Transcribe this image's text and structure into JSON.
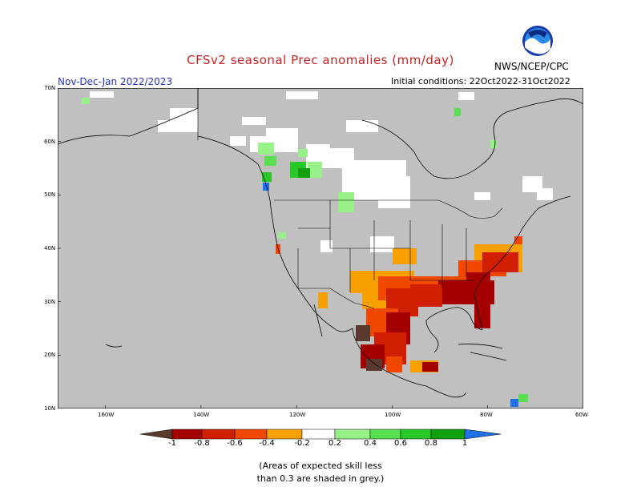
{
  "header": {
    "title": "CFSv2 seasonal Prec anomalies (mm/day)",
    "org": "NWS/NCEP/CPC",
    "season": "Nov-Dec-Jan 2022/2023",
    "init": "Initial conditions: 22Oct2022-31Oct2022",
    "logo_text": "NOAA"
  },
  "map": {
    "lat_labels": [
      "70N",
      "60N",
      "50N",
      "40N",
      "30N",
      "20N",
      "10N"
    ],
    "lon_labels": [
      "160W",
      "140W",
      "120W",
      "100W",
      "80W",
      "60W"
    ],
    "lat_range": [
      10,
      70
    ],
    "lon_range": [
      -170,
      -60
    ],
    "skill_mask_color": "#c0c0c0"
  },
  "colorbar": {
    "labels": [
      "-1",
      "-0.8",
      "-0.6",
      "-0.4",
      "-0.2",
      "0.2",
      "0.4",
      "0.6",
      "0.8",
      "1"
    ],
    "colors": [
      "#5a3a2e",
      "#a50000",
      "#d01e00",
      "#f04800",
      "#f8a000",
      "#ffffff",
      "#98f088",
      "#58e050",
      "#28c828",
      "#10a010",
      "#2070e8"
    ]
  },
  "footer": {
    "note_line1": "(Areas of expected skill less",
    "note_line2": "than 0.3 are shaded in grey.)"
  }
}
